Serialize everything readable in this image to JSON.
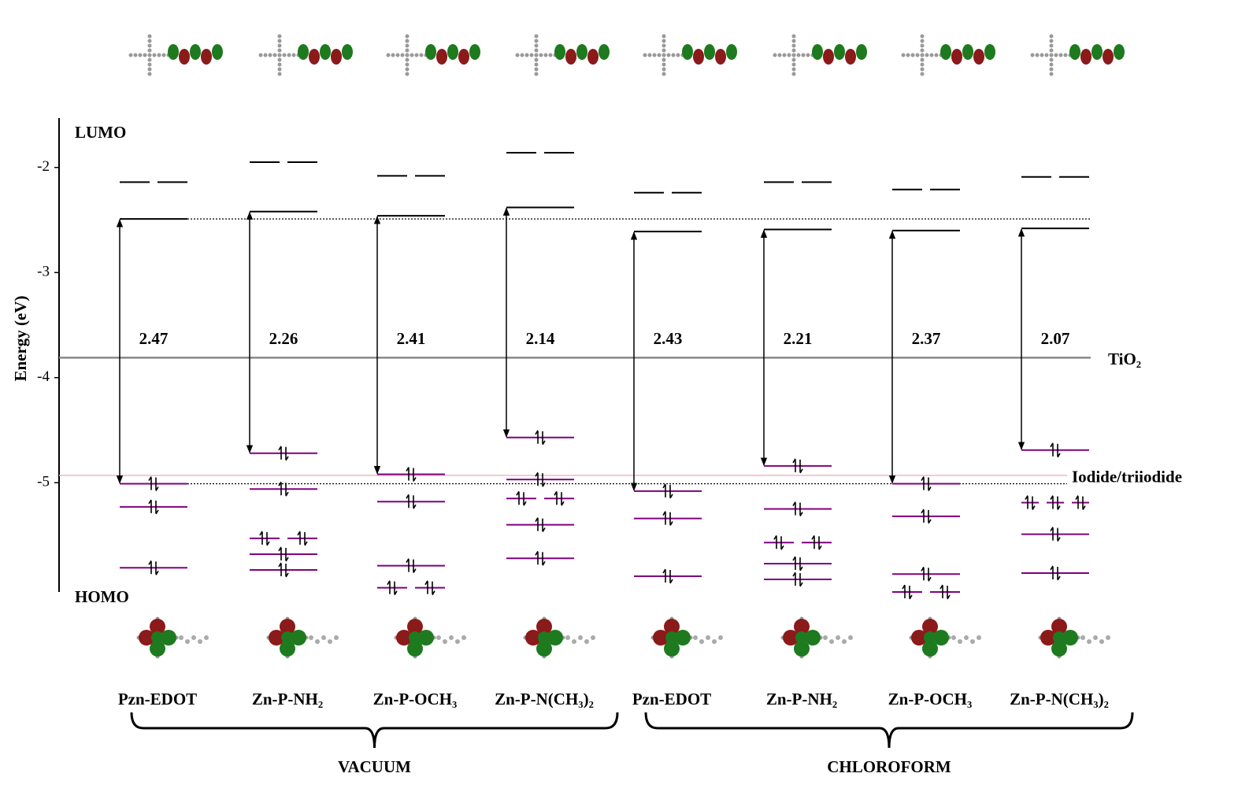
{
  "chart_data": {
    "type": "energy-levels",
    "ylabel": "Energy (eV)",
    "ylim": [
      -6.04,
      -1.53
    ],
    "yticks": [
      -2,
      -3,
      -4,
      -5
    ],
    "lumo_label": "LUMO",
    "homo_label": "HOMO",
    "lumo_color": "#000000",
    "homo_color": "#800080",
    "references": [
      {
        "name": "TiO₂",
        "energy": -3.81,
        "color": "#888888"
      },
      {
        "name": "Iodide/triiodide",
        "energy": -4.93,
        "color": "#f4b6c2"
      }
    ],
    "groups": [
      {
        "name": "VACUUM",
        "systems": [
          0,
          3
        ]
      },
      {
        "name": "CHLOROFORM",
        "systems": [
          4,
          7
        ]
      }
    ],
    "systems": [
      {
        "label": "Pzn-EDOT",
        "gap": 2.47,
        "lumo_plus_1": -2.14,
        "lumo": -2.49,
        "occupied": [
          {
            "energy": -5.01,
            "split": 1
          },
          {
            "energy": -5.23,
            "split": 1
          },
          {
            "energy": -5.81,
            "split": 1
          }
        ]
      },
      {
        "label": "Zn-P-NH₂",
        "gap": 2.26,
        "lumo_plus_1": -1.95,
        "lumo": -2.42,
        "occupied": [
          {
            "energy": -4.72,
            "split": 1
          },
          {
            "energy": -5.06,
            "split": 1
          },
          {
            "energy": -5.53,
            "split": 2
          },
          {
            "energy": -5.68,
            "split": 1
          },
          {
            "energy": -5.83,
            "split": 1
          }
        ]
      },
      {
        "label": "Zn-P-OCH₃",
        "gap": 2.41,
        "lumo_plus_1": -2.08,
        "lumo": -2.46,
        "occupied": [
          {
            "energy": -4.92,
            "split": 1
          },
          {
            "energy": -5.18,
            "split": 1
          },
          {
            "energy": -5.79,
            "split": 1
          },
          {
            "energy": -6.0,
            "split": 2
          }
        ]
      },
      {
        "label": "Zn-P-N(CH₃)₂",
        "gap": 2.14,
        "lumo_plus_1": -1.86,
        "lumo": -2.38,
        "occupied": [
          {
            "energy": -4.57,
            "split": 1
          },
          {
            "energy": -4.97,
            "split": 1
          },
          {
            "energy": -5.15,
            "split": 2
          },
          {
            "energy": -5.4,
            "split": 1
          },
          {
            "energy": -5.72,
            "split": 1
          }
        ]
      },
      {
        "label": "Pzn-EDOT",
        "gap": 2.43,
        "lumo_plus_1": -2.24,
        "lumo": -2.61,
        "occupied": [
          {
            "energy": -5.08,
            "split": 1
          },
          {
            "energy": -5.34,
            "split": 1
          },
          {
            "energy": -5.89,
            "split": 1
          }
        ]
      },
      {
        "label": "Zn-P-NH₂",
        "gap": 2.21,
        "lumo_plus_1": -2.14,
        "lumo": -2.59,
        "occupied": [
          {
            "energy": -4.84,
            "split": 1
          },
          {
            "energy": -5.25,
            "split": 1
          },
          {
            "energy": -5.57,
            "split": 2
          },
          {
            "energy": -5.77,
            "split": 1
          },
          {
            "energy": -5.92,
            "split": 1
          }
        ]
      },
      {
        "label": "Zn-P-OCH₃",
        "gap": 2.37,
        "lumo_plus_1": -2.21,
        "lumo": -2.6,
        "occupied": [
          {
            "energy": -5.01,
            "split": 1
          },
          {
            "energy": -5.32,
            "split": 1
          },
          {
            "energy": -5.87,
            "split": 1
          },
          {
            "energy": -6.04,
            "split": 2
          }
        ]
      },
      {
        "label": "Zn-P-N(CH₃)₂",
        "gap": 2.07,
        "lumo_plus_1": -2.09,
        "lumo": -2.58,
        "occupied": [
          {
            "energy": -4.69,
            "split": 1
          },
          {
            "energy": -5.19,
            "split": 3
          },
          {
            "energy": -5.49,
            "split": 1
          },
          {
            "energy": -5.86,
            "split": 1
          }
        ]
      }
    ]
  }
}
